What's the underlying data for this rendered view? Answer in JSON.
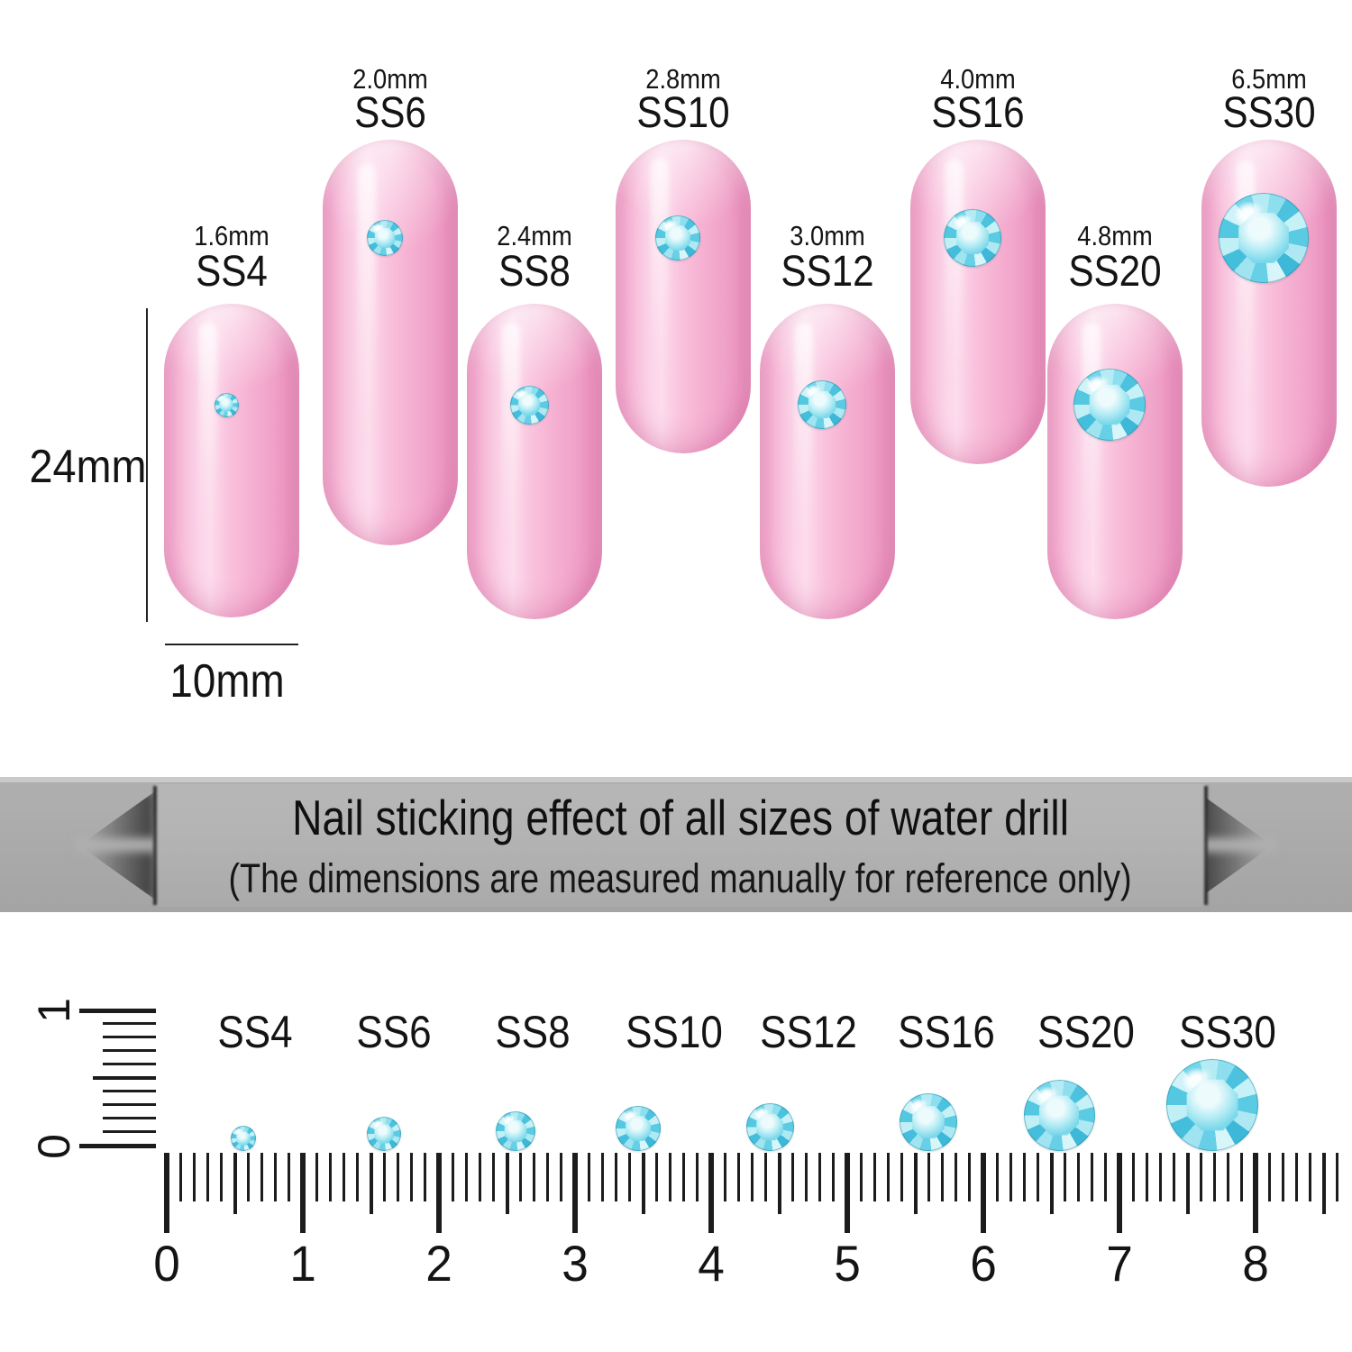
{
  "nail_chart": {
    "height_label": "24mm",
    "width_label": "10mm",
    "nails": [
      {
        "mm": "1.6mm",
        "size": "SS4"
      },
      {
        "mm": "2.0mm",
        "size": "SS6"
      },
      {
        "mm": "2.4mm",
        "size": "SS8"
      },
      {
        "mm": "2.8mm",
        "size": "SS10"
      },
      {
        "mm": "3.0mm",
        "size": "SS12"
      },
      {
        "mm": "4.0mm",
        "size": "SS16"
      },
      {
        "mm": "4.8mm",
        "size": "SS20"
      },
      {
        "mm": "6.5mm",
        "size": "SS30"
      }
    ]
  },
  "banner": {
    "title": "Nail sticking effect of all sizes of water drill",
    "subtitle": "(The dimensions are measured manually for reference only)"
  },
  "ruler": {
    "vertical_numbers": [
      "1",
      "0"
    ],
    "cm_numbers": [
      "0",
      "1",
      "2",
      "3",
      "4",
      "5",
      "6",
      "7",
      "8"
    ],
    "items": [
      {
        "size": "SS4"
      },
      {
        "size": "SS6"
      },
      {
        "size": "SS8"
      },
      {
        "size": "SS10"
      },
      {
        "size": "SS12"
      },
      {
        "size": "SS16"
      },
      {
        "size": "SS20"
      },
      {
        "size": "SS30"
      }
    ]
  },
  "colors": {
    "background": "#ffffff",
    "nail_pink": "#f8bcd9",
    "nail_pink_highlight": "#fdd9ec",
    "nail_pink_shadow": "#e78fbc",
    "gem_aqua": "#6ed2e8",
    "gem_aqua_dark": "#3db8d8",
    "gem_aqua_light": "#d8f6fa",
    "banner_gray": "#a9a9a9",
    "banner_panel_gray": "#b2b2b2",
    "text_dark": "#141414",
    "ruler_black": "#1c1c1c"
  }
}
